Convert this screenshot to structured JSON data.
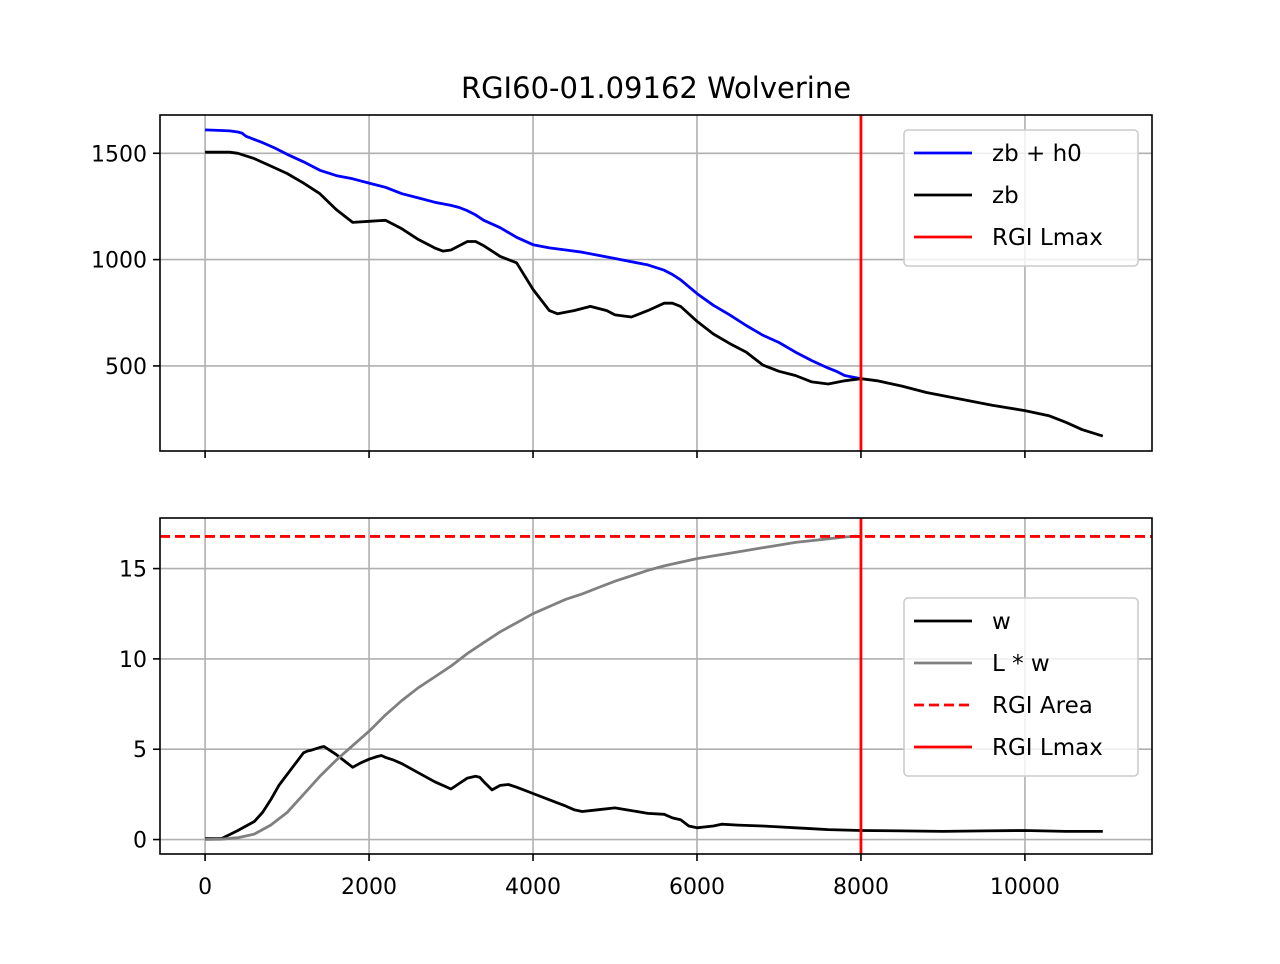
{
  "chart_data": [
    {
      "type": "line",
      "title": "RGI60-01.09162 Wolverine",
      "xlim": [
        -550,
        11550
      ],
      "ylim": [
        100,
        1680
      ],
      "xticks": [
        0,
        2000,
        4000,
        6000,
        8000,
        10000
      ],
      "xtick_labels_visible": false,
      "yticks": [
        500,
        1000,
        1500
      ],
      "ytick_labels": [
        "500",
        "1000",
        "1500"
      ],
      "grid": true,
      "legend_position": "upper-right",
      "series": [
        {
          "name": "zb + h0",
          "color": "#0000ff",
          "x": [
            0,
            200,
            300,
            400,
            450,
            500,
            700,
            850,
            1000,
            1200,
            1400,
            1600,
            1800,
            2000,
            2200,
            2400,
            2600,
            2800,
            3000,
            3100,
            3200,
            3300,
            3400,
            3600,
            3800,
            4000,
            4200,
            4400,
            4600,
            4800,
            5000,
            5200,
            5400,
            5600,
            5700,
            5800,
            6000,
            6200,
            6400,
            6600,
            6800,
            7000,
            7200,
            7400,
            7600,
            7700,
            7800,
            8000
          ],
          "y": [
            1610,
            1607,
            1605,
            1600,
            1595,
            1580,
            1550,
            1525,
            1495,
            1460,
            1420,
            1395,
            1380,
            1360,
            1340,
            1310,
            1290,
            1270,
            1255,
            1245,
            1230,
            1210,
            1185,
            1150,
            1105,
            1070,
            1055,
            1045,
            1035,
            1020,
            1005,
            990,
            975,
            950,
            930,
            905,
            840,
            785,
            740,
            690,
            645,
            610,
            565,
            525,
            490,
            475,
            455,
            440
          ]
        },
        {
          "name": "zb",
          "color": "#000000",
          "x": [
            0,
            200,
            300,
            400,
            600,
            800,
            1000,
            1200,
            1400,
            1600,
            1800,
            2000,
            2200,
            2400,
            2600,
            2800,
            2900,
            3000,
            3100,
            3200,
            3300,
            3400,
            3500,
            3600,
            3800,
            4000,
            4200,
            4300,
            4500,
            4700,
            4900,
            5000,
            5200,
            5400,
            5600,
            5700,
            5800,
            6000,
            6200,
            6400,
            6600,
            6800,
            7000,
            7200,
            7400,
            7600,
            7800,
            8000,
            8200,
            8500,
            8800,
            9200,
            9600,
            10000,
            10300,
            10500,
            10700,
            10950
          ],
          "y": [
            1505,
            1505,
            1505,
            1500,
            1475,
            1440,
            1405,
            1360,
            1310,
            1235,
            1175,
            1180,
            1185,
            1145,
            1095,
            1055,
            1040,
            1045,
            1065,
            1085,
            1085,
            1065,
            1040,
            1015,
            985,
            860,
            760,
            745,
            760,
            780,
            760,
            740,
            730,
            760,
            795,
            795,
            780,
            710,
            650,
            605,
            565,
            505,
            475,
            455,
            425,
            415,
            430,
            440,
            430,
            405,
            375,
            345,
            315,
            290,
            265,
            235,
            200,
            170
          ]
        }
      ],
      "vlines": [
        {
          "name": "RGI Lmax",
          "x": 8000,
          "color": "#ff0000",
          "style": "solid"
        }
      ],
      "legend": [
        "zb + h0",
        "zb",
        "RGI Lmax"
      ]
    },
    {
      "type": "line",
      "title": "",
      "xlim": [
        -550,
        11550
      ],
      "ylim": [
        -0.8,
        17.8
      ],
      "xticks": [
        0,
        2000,
        4000,
        6000,
        8000,
        10000
      ],
      "xtick_labels": [
        "0",
        "2000",
        "4000",
        "6000",
        "8000",
        "10000"
      ],
      "yticks": [
        0,
        5,
        10,
        15
      ],
      "ytick_labels": [
        "0",
        "5",
        "10",
        "15"
      ],
      "grid": true,
      "legend_position": "center-right",
      "series": [
        {
          "name": "w",
          "color": "#000000",
          "x": [
            0,
            200,
            400,
            600,
            700,
            800,
            900,
            1000,
            1100,
            1200,
            1250,
            1300,
            1400,
            1450,
            1500,
            1600,
            1700,
            1800,
            1900,
            2000,
            2100,
            2150,
            2200,
            2300,
            2400,
            2600,
            2800,
            3000,
            3100,
            3200,
            3300,
            3350,
            3400,
            3500,
            3600,
            3700,
            3800,
            4000,
            4200,
            4400,
            4500,
            4600,
            4800,
            5000,
            5200,
            5400,
            5600,
            5700,
            5800,
            5900,
            6000,
            6100,
            6200,
            6300,
            6500,
            6800,
            7000,
            7200,
            7400,
            7600,
            8000,
            8500,
            9000,
            9500,
            10000,
            10500,
            10950
          ],
          "y": [
            0.05,
            0.05,
            0.5,
            1.0,
            1.5,
            2.2,
            3.0,
            3.6,
            4.2,
            4.8,
            4.9,
            4.95,
            5.1,
            5.15,
            5.0,
            4.7,
            4.35,
            4.0,
            4.25,
            4.45,
            4.6,
            4.65,
            4.55,
            4.4,
            4.2,
            3.7,
            3.2,
            2.8,
            3.1,
            3.4,
            3.5,
            3.45,
            3.2,
            2.75,
            3.0,
            3.05,
            2.9,
            2.55,
            2.2,
            1.85,
            1.65,
            1.55,
            1.65,
            1.75,
            1.6,
            1.45,
            1.4,
            1.2,
            1.1,
            0.75,
            0.65,
            0.7,
            0.75,
            0.85,
            0.8,
            0.75,
            0.7,
            0.65,
            0.6,
            0.55,
            0.5,
            0.48,
            0.45,
            0.48,
            0.5,
            0.45,
            0.45
          ]
        },
        {
          "name": "L * w",
          "color": "#808080",
          "x": [
            0,
            200,
            400,
            600,
            800,
            1000,
            1200,
            1400,
            1600,
            1800,
            2000,
            2200,
            2400,
            2600,
            2800,
            3000,
            3200,
            3400,
            3600,
            3800,
            4000,
            4200,
            4400,
            4600,
            4800,
            5000,
            5200,
            5400,
            5600,
            5800,
            6000,
            6200,
            6400,
            6600,
            6800,
            7000,
            7200,
            7400,
            7600,
            7800,
            7950
          ],
          "y": [
            0.0,
            0.02,
            0.1,
            0.3,
            0.8,
            1.5,
            2.5,
            3.5,
            4.4,
            5.2,
            6.0,
            6.9,
            7.7,
            8.4,
            9.0,
            9.6,
            10.3,
            10.9,
            11.5,
            12.0,
            12.5,
            12.9,
            13.3,
            13.6,
            13.95,
            14.3,
            14.6,
            14.9,
            15.15,
            15.35,
            15.55,
            15.7,
            15.85,
            16.0,
            16.15,
            16.3,
            16.45,
            16.55,
            16.65,
            16.75,
            16.8
          ]
        }
      ],
      "hlines": [
        {
          "name": "RGI Area",
          "y": 16.78,
          "color": "#ff0000",
          "style": "dashed"
        }
      ],
      "vlines": [
        {
          "name": "RGI Lmax",
          "x": 8000,
          "color": "#ff0000",
          "style": "solid"
        }
      ],
      "legend": [
        "w",
        "L * w",
        "RGI Area",
        "RGI Lmax"
      ]
    }
  ]
}
